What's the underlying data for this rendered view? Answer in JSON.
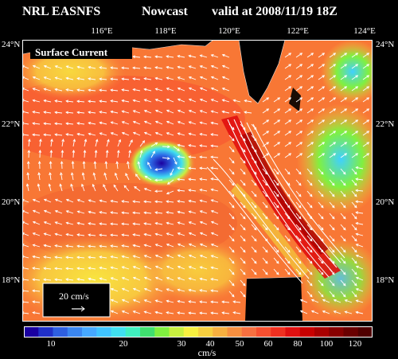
{
  "header": {
    "source": "NRL EASNFS",
    "product": "Nowcast",
    "valid": "valid at 2008/11/19 18Z"
  },
  "map": {
    "panel_title": "Surface Current",
    "lon_labels": [
      "116°E",
      "118°E",
      "120°E",
      "122°E",
      "124°E"
    ],
    "lat_labels_left": [
      "24°N",
      "22°N",
      "20°N",
      "18°N"
    ],
    "lat_labels_right": [
      "24°N",
      "22°N",
      "20°N",
      "18°N"
    ],
    "scale_label": "20 cm/s"
  },
  "colorbar": {
    "tick_labels": [
      "10",
      "20",
      "30",
      "40",
      "50",
      "60",
      "80",
      "100",
      "120"
    ],
    "units": "cm/s",
    "colors": [
      "#1a00a0",
      "#2030c8",
      "#2e5fe0",
      "#3a86f0",
      "#46a8ff",
      "#40c4ff",
      "#40e0f0",
      "#40f0c0",
      "#40e070",
      "#80f040",
      "#c8f040",
      "#f8f040",
      "#f8d040",
      "#f8b040",
      "#f89040",
      "#f87040",
      "#f85030",
      "#f03020",
      "#e01010",
      "#c80000",
      "#a80000",
      "#880000",
      "#6a0000",
      "#500000"
    ]
  }
}
